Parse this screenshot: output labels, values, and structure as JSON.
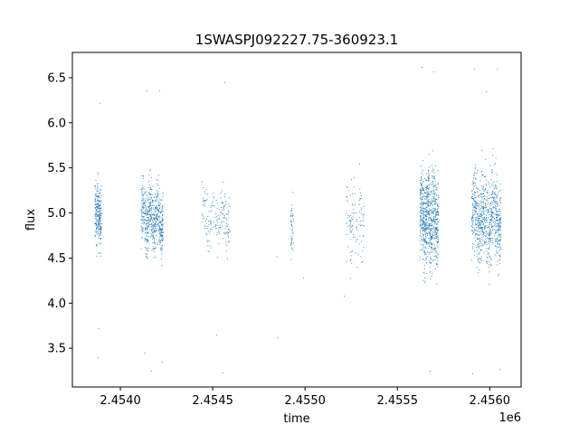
{
  "chart_data": {
    "type": "scatter",
    "title": "1SWASPJ092227.75-360923.1",
    "xlabel": "time",
    "ylabel": "flux",
    "x_offset_label": "1e6",
    "xlim": [
      2453740,
      2456170
    ],
    "ylim": [
      3.07,
      6.78
    ],
    "x_ticks": [
      2454000,
      2454500,
      2455000,
      2455500,
      2456000
    ],
    "x_tick_labels": [
      "2.4540",
      "2.4545",
      "2.4550",
      "2.4555",
      "2.4560"
    ],
    "y_ticks": [
      3.5,
      4.0,
      4.5,
      5.0,
      5.5,
      6.0,
      6.5
    ],
    "y_tick_labels": [
      "3.5",
      "4.0",
      "4.5",
      "5.0",
      "5.5",
      "6.0",
      "6.5"
    ],
    "grid": false,
    "marker_color": "#1f77b4",
    "segments": [
      {
        "t_start": 2453860,
        "t_end": 2453895,
        "center": 5.0,
        "spread": 0.28,
        "count": 260
      },
      {
        "t_start": 2454110,
        "t_end": 2454230,
        "center": 4.95,
        "spread": 0.3,
        "count": 620
      },
      {
        "t_start": 2454440,
        "t_end": 2454590,
        "center": 4.95,
        "spread": 0.3,
        "count": 180
      },
      {
        "t_start": 2454920,
        "t_end": 2454935,
        "center": 4.85,
        "spread": 0.35,
        "count": 45
      },
      {
        "t_start": 2455220,
        "t_end": 2455320,
        "center": 4.9,
        "spread": 0.35,
        "count": 110
      },
      {
        "t_start": 2455620,
        "t_end": 2455720,
        "center": 4.95,
        "spread": 0.45,
        "count": 820
      },
      {
        "t_start": 2455900,
        "t_end": 2456060,
        "center": 4.95,
        "spread": 0.42,
        "count": 820
      }
    ],
    "outliers": [
      {
        "x": 2453876,
        "y": 3.4
      },
      {
        "x": 2453880,
        "y": 3.72
      },
      {
        "x": 2453889,
        "y": 6.22
      },
      {
        "x": 2454140,
        "y": 6.36
      },
      {
        "x": 2454165,
        "y": 3.25
      },
      {
        "x": 2454210,
        "y": 6.36
      },
      {
        "x": 2454225,
        "y": 3.35
      },
      {
        "x": 2454130,
        "y": 3.45
      },
      {
        "x": 2454563,
        "y": 6.45
      },
      {
        "x": 2454551,
        "y": 3.23
      },
      {
        "x": 2454520,
        "y": 3.65
      },
      {
        "x": 2454845,
        "y": 4.52
      },
      {
        "x": 2454848,
        "y": 3.62
      },
      {
        "x": 2454990,
        "y": 4.28
      },
      {
        "x": 2455210,
        "y": 4.08
      },
      {
        "x": 2455300,
        "y": 4.52
      },
      {
        "x": 2455630,
        "y": 6.62
      },
      {
        "x": 2455694,
        "y": 6.57
      },
      {
        "x": 2455675,
        "y": 3.25
      },
      {
        "x": 2455915,
        "y": 6.6
      },
      {
        "x": 2455905,
        "y": 3.22
      },
      {
        "x": 2456040,
        "y": 6.6
      },
      {
        "x": 2456055,
        "y": 3.27
      },
      {
        "x": 2455980,
        "y": 6.35
      }
    ]
  }
}
